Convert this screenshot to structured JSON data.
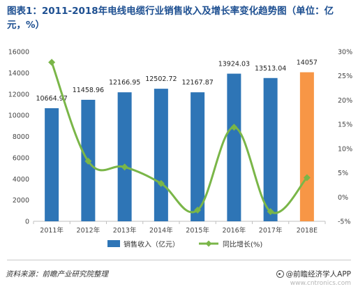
{
  "chart_data": {
    "type": "bar",
    "title": "图表1：2011-2018年电线电缆行业销售收入及增长率变化趋势图（单位：亿元，%）",
    "categories": [
      "2011年",
      "2012年",
      "2013年",
      "2014年",
      "2015年",
      "2016年",
      "2017年",
      "2018E"
    ],
    "series": [
      {
        "name": "销售收入（亿元）",
        "type": "bar",
        "axis": "left",
        "values": [
          10664.97,
          11458.96,
          12166.95,
          12502.72,
          12167.87,
          13924.03,
          13513.04,
          14057
        ],
        "value_labels": [
          "10664.97",
          "11458.96",
          "12166.95",
          "12502.72",
          "12167.87",
          "13924.03",
          "13513.04",
          "14057"
        ],
        "color": "#2e75b6",
        "highlight_last_color": "#f79646"
      },
      {
        "name": "同比增长(%)",
        "type": "line",
        "axis": "right",
        "values": [
          27.8,
          7.4,
          6.2,
          2.8,
          -2.7,
          14.4,
          -3.0,
          4.0
        ],
        "color": "#7ab648"
      }
    ],
    "y_left": {
      "min": 0,
      "max": 16000,
      "ticks": [
        0,
        2000,
        4000,
        6000,
        8000,
        10000,
        12000,
        14000,
        16000
      ],
      "tick_labels": [
        "0",
        "2000",
        "4000",
        "6000",
        "8000",
        "10000",
        "12000",
        "14000",
        "16000"
      ]
    },
    "y_right": {
      "min": -5,
      "max": 30,
      "ticks": [
        -5,
        0,
        5,
        10,
        15,
        20,
        25,
        30
      ],
      "tick_labels": [
        "-5%",
        "0%",
        "5%",
        "10%",
        "15%",
        "20%",
        "25%",
        "30%"
      ]
    },
    "grid": false,
    "legend": "bottom"
  },
  "footer": {
    "source": "资料来源：前瞻产业研究院整理",
    "brand": "@前瞻经济学人APP"
  },
  "watermark": {
    "text": "www.cntronics.com"
  },
  "colors": {
    "title": "#1d4f91",
    "bar": "#2e75b6",
    "bar_forecast": "#f79646",
    "line": "#7ab648",
    "axis": "#bfbfbf"
  }
}
